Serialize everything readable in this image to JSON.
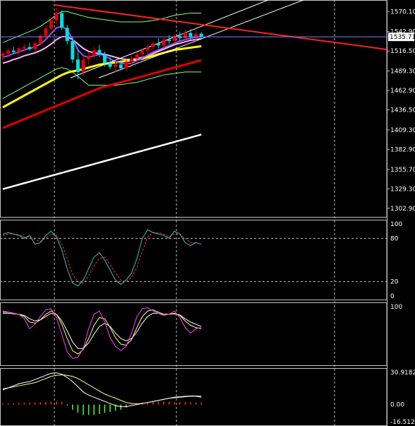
{
  "colors": {
    "background": "#000000",
    "axis": "#c0c0c0",
    "grid": "#c0c0c0",
    "bull_candle": "#e00000",
    "bear_candle": "#00e0e0",
    "ma_fast": "#8a55ff",
    "ma_mid": "#ffb0ff",
    "ma_slow": "#ffff00",
    "ma_red": "#e00000",
    "ma_white": "#ffffff",
    "bollinger": "#7fff7f",
    "trendline_red": "#ff2020",
    "channel": "#ffffff",
    "osc_main": "#40c0c0",
    "osc_signal": "#ff3030",
    "stoch_main": "#ff40ff",
    "stoch_signal": "#ffff80",
    "stoch_extra": "#ffffff",
    "macd_line": "#ffffff",
    "macd_signal": "#ffff80",
    "hist_pos": "#ff3030",
    "hist_neg": "#40ff40",
    "price_tag": "#ffffff"
  },
  "chart_data": [
    {
      "type": "candlestick",
      "current_price": "1535.71",
      "ylim": [
        1296.0,
        1580.0
      ],
      "y_ticks": [
        "1570.10",
        "1542.90",
        "1516.50",
        "1489.30",
        "1462.90",
        "1436.50",
        "1409.30",
        "1382.90",
        "1355.70",
        "1329.30",
        "1302.90"
      ],
      "candles": [
        {
          "o": 1510,
          "h": 1516,
          "l": 1504,
          "c": 1513
        },
        {
          "o": 1513,
          "h": 1520,
          "l": 1508,
          "c": 1517
        },
        {
          "o": 1517,
          "h": 1522,
          "l": 1512,
          "c": 1515
        },
        {
          "o": 1515,
          "h": 1523,
          "l": 1510,
          "c": 1520
        },
        {
          "o": 1520,
          "h": 1526,
          "l": 1516,
          "c": 1522
        },
        {
          "o": 1522,
          "h": 1528,
          "l": 1517,
          "c": 1519
        },
        {
          "o": 1519,
          "h": 1530,
          "l": 1515,
          "c": 1527
        },
        {
          "o": 1527,
          "h": 1540,
          "l": 1524,
          "c": 1537
        },
        {
          "o": 1537,
          "h": 1550,
          "l": 1533,
          "c": 1547
        },
        {
          "o": 1547,
          "h": 1562,
          "l": 1542,
          "c": 1558
        },
        {
          "o": 1558,
          "h": 1575,
          "l": 1552,
          "c": 1568
        },
        {
          "o": 1568,
          "h": 1572,
          "l": 1545,
          "c": 1548
        },
        {
          "o": 1548,
          "h": 1552,
          "l": 1525,
          "c": 1530
        },
        {
          "o": 1530,
          "h": 1536,
          "l": 1500,
          "c": 1505
        },
        {
          "o": 1505,
          "h": 1518,
          "l": 1478,
          "c": 1488
        },
        {
          "o": 1488,
          "h": 1510,
          "l": 1482,
          "c": 1505
        },
        {
          "o": 1505,
          "h": 1515,
          "l": 1498,
          "c": 1510
        },
        {
          "o": 1510,
          "h": 1522,
          "l": 1505,
          "c": 1518
        },
        {
          "o": 1518,
          "h": 1525,
          "l": 1508,
          "c": 1512
        },
        {
          "o": 1512,
          "h": 1516,
          "l": 1495,
          "c": 1500
        },
        {
          "o": 1500,
          "h": 1508,
          "l": 1492,
          "c": 1495
        },
        {
          "o": 1495,
          "h": 1502,
          "l": 1488,
          "c": 1498
        },
        {
          "o": 1498,
          "h": 1504,
          "l": 1490,
          "c": 1493
        },
        {
          "o": 1493,
          "h": 1505,
          "l": 1490,
          "c": 1502
        },
        {
          "o": 1502,
          "h": 1510,
          "l": 1498,
          "c": 1506
        },
        {
          "o": 1506,
          "h": 1515,
          "l": 1502,
          "c": 1512
        },
        {
          "o": 1512,
          "h": 1520,
          "l": 1508,
          "c": 1517
        },
        {
          "o": 1517,
          "h": 1526,
          "l": 1512,
          "c": 1522
        },
        {
          "o": 1522,
          "h": 1530,
          "l": 1518,
          "c": 1527
        },
        {
          "o": 1527,
          "h": 1534,
          "l": 1520,
          "c": 1524
        },
        {
          "o": 1524,
          "h": 1535,
          "l": 1520,
          "c": 1532
        },
        {
          "o": 1532,
          "h": 1538,
          "l": 1526,
          "c": 1530
        },
        {
          "o": 1530,
          "h": 1540,
          "l": 1526,
          "c": 1537
        },
        {
          "o": 1537,
          "h": 1543,
          "l": 1530,
          "c": 1534
        },
        {
          "o": 1534,
          "h": 1545,
          "l": 1530,
          "c": 1541
        },
        {
          "o": 1541,
          "h": 1546,
          "l": 1532,
          "c": 1536
        },
        {
          "o": 1536,
          "h": 1544,
          "l": 1530,
          "c": 1540
        },
        {
          "o": 1540,
          "h": 1542,
          "l": 1532,
          "c": 1535.71
        }
      ],
      "ma_fast": [
        1508,
        1510,
        1513,
        1515,
        1518,
        1520,
        1522,
        1526,
        1532,
        1540,
        1548,
        1550,
        1545,
        1533,
        1518,
        1510,
        1508,
        1510,
        1512,
        1510,
        1506,
        1502,
        1500,
        1499,
        1500,
        1503,
        1507,
        1511,
        1515,
        1518,
        1521,
        1524,
        1527,
        1530,
        1532,
        1534,
        1535,
        1536
      ],
      "ma_mid": [
        1500,
        1502,
        1505,
        1507,
        1510,
        1512,
        1514,
        1517,
        1521,
        1526,
        1532,
        1536,
        1536,
        1532,
        1526,
        1520,
        1516,
        1514,
        1513,
        1512,
        1510,
        1508,
        1506,
        1505,
        1505,
        1506,
        1508,
        1510,
        1513,
        1516,
        1519,
        1522,
        1525,
        1527,
        1529,
        1531,
        1532,
        1533
      ],
      "ma_slow": [
        1440,
        1444,
        1448,
        1452,
        1456,
        1460,
        1464,
        1468,
        1472,
        1476,
        1480,
        1484,
        1487,
        1489,
        1490,
        1492,
        1494,
        1496,
        1498,
        1499,
        1500,
        1501,
        1502,
        1503,
        1504,
        1505,
        1506,
        1508,
        1510,
        1512,
        1514,
        1516,
        1518,
        1519,
        1520,
        1521,
        1522,
        1523
      ],
      "ma_red": [
        1412,
        1415,
        1418,
        1421,
        1424,
        1427,
        1430,
        1433,
        1436,
        1439,
        1442,
        1445,
        1448,
        1451,
        1454,
        1457,
        1460,
        1463,
        1466,
        1468,
        1470,
        1472,
        1474,
        1476,
        1478,
        1480,
        1482,
        1484,
        1486,
        1488,
        1490,
        1492,
        1494,
        1496,
        1498,
        1500,
        1502,
        1504
      ],
      "ma_white": [
        1329,
        1331,
        1333,
        1335,
        1337,
        1339,
        1341,
        1343,
        1345,
        1347,
        1349,
        1351,
        1353,
        1355,
        1357,
        1359,
        1361,
        1363,
        1365,
        1367,
        1369,
        1371,
        1373,
        1375,
        1377,
        1379,
        1381,
        1383,
        1385,
        1387,
        1389,
        1391,
        1393,
        1395,
        1397,
        1399,
        1401,
        1403
      ],
      "boll_upper": [
        1528,
        1531,
        1534,
        1537,
        1540,
        1543,
        1546,
        1550,
        1555,
        1560,
        1566,
        1570,
        1570,
        1568,
        1566,
        1564,
        1562,
        1561,
        1560,
        1559,
        1558,
        1557,
        1556,
        1556,
        1556,
        1556,
        1556,
        1557,
        1558,
        1559,
        1561,
        1563,
        1565,
        1566,
        1567,
        1568,
        1568,
        1568
      ],
      "boll_lower": [
        1452,
        1456,
        1460,
        1464,
        1468,
        1472,
        1476,
        1480,
        1484,
        1488,
        1492,
        1494,
        1492,
        1488,
        1482,
        1476,
        1470,
        1470,
        1470,
        1470,
        1470,
        1470,
        1471,
        1472,
        1473,
        1474,
        1476,
        1478,
        1480,
        1482,
        1484,
        1485,
        1486,
        1487,
        1488,
        1488,
        1488,
        1488
      ]
    },
    {
      "type": "line",
      "name": "oscillator",
      "ylim": [
        0,
        100
      ],
      "y_ticks": [
        "100",
        "80",
        "20",
        "0"
      ],
      "series": [
        {
          "values": [
            86,
            88,
            86,
            84,
            80,
            84,
            72,
            74,
            84,
            90,
            82,
            64,
            38,
            18,
            14,
            22,
            38,
            54,
            60,
            50,
            36,
            22,
            16,
            22,
            32,
            52,
            80,
            92,
            88,
            86,
            84,
            80,
            90,
            86,
            74,
            70,
            74,
            72
          ]
        },
        {
          "values": [
            84,
            86,
            86,
            85,
            82,
            82,
            78,
            76,
            80,
            86,
            84,
            72,
            52,
            30,
            20,
            18,
            28,
            42,
            52,
            54,
            44,
            32,
            22,
            20,
            26,
            40,
            62,
            82,
            88,
            88,
            86,
            82,
            86,
            86,
            80,
            74,
            74,
            72
          ]
        }
      ]
    },
    {
      "type": "line",
      "name": "stochastic",
      "ylim": [
        0,
        100
      ],
      "y_ticks": [
        "100"
      ],
      "series": [
        {
          "values": [
            92,
            90,
            88,
            86,
            78,
            60,
            68,
            82,
            94,
            96,
            80,
            50,
            18,
            6,
            8,
            24,
            60,
            86,
            92,
            72,
            44,
            28,
            20,
            28,
            52,
            82,
            96,
            98,
            92,
            88,
            84,
            86,
            92,
            80,
            62,
            52,
            60,
            62
          ]
        },
        {
          "values": [
            90,
            90,
            88,
            86,
            82,
            72,
            70,
            76,
            86,
            92,
            86,
            68,
            42,
            20,
            14,
            22,
            42,
            66,
            80,
            78,
            62,
            44,
            32,
            30,
            40,
            62,
            82,
            92,
            94,
            90,
            86,
            86,
            88,
            84,
            74,
            66,
            62,
            60
          ]
        },
        {
          "values": [
            88,
            88,
            87,
            86,
            84,
            78,
            74,
            76,
            82,
            88,
            86,
            74,
            56,
            36,
            24,
            24,
            34,
            50,
            64,
            70,
            64,
            52,
            42,
            38,
            42,
            54,
            70,
            82,
            88,
            88,
            86,
            86,
            87,
            85,
            78,
            72,
            68,
            64
          ]
        }
      ]
    },
    {
      "type": "line",
      "name": "macd",
      "ylim": [
        -16.5127,
        30.91822
      ],
      "y_ticks": [
        "30.91822",
        "0.00",
        "-16.5127"
      ],
      "series": [
        {
          "values": [
            14,
            16,
            18,
            20,
            21,
            22,
            24,
            26,
            28,
            30,
            30.5,
            29,
            26,
            22,
            17,
            12,
            9,
            7,
            5,
            3,
            1,
            -1,
            -2,
            -2,
            -1,
            0,
            1,
            2,
            3,
            4,
            5,
            6,
            6.5,
            7,
            7.5,
            8,
            8,
            7
          ]
        },
        {
          "values": [
            15,
            16,
            17,
            18,
            19,
            20,
            21,
            23,
            25,
            27,
            28,
            28.5,
            28,
            27,
            25,
            22,
            19,
            16,
            13,
            10,
            8,
            6,
            4,
            2,
            1,
            0.5,
            1,
            2,
            3,
            4,
            5,
            6,
            7,
            7.5,
            8,
            8.2,
            8.2,
            8
          ]
        }
      ],
      "histogram": [
        1.2,
        1.4,
        1.5,
        1.6,
        1.8,
        1.9,
        2.0,
        2.2,
        2.4,
        2.6,
        2.8,
        2.6,
        -1,
        -5,
        -8,
        -10,
        -10,
        -10,
        -9,
        -8,
        -7,
        -6,
        -5,
        -3,
        1.0,
        1.5,
        2.0,
        2.2,
        2.4,
        2.6,
        2.8,
        2.6,
        2.5,
        2.4,
        2.3,
        2.2,
        2.0,
        1.8
      ]
    }
  ]
}
